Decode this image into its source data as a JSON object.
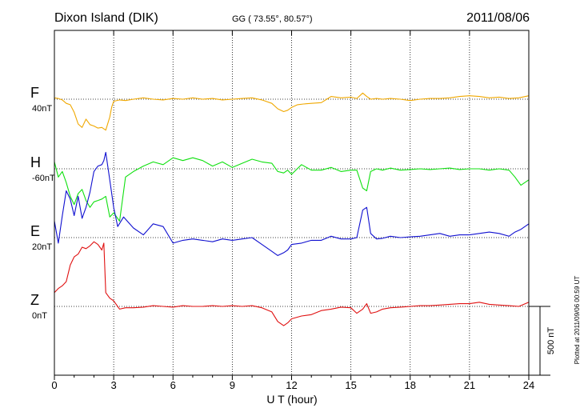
{
  "header": {
    "station": "Dixon Island (DIK)",
    "coords": "GG ( 73.55°,  80.57°)",
    "date": "2011/08/06"
  },
  "side_note": "Plotted at 2011/09/06 00:59 UT",
  "scale_label": "500 nT",
  "chart_data": {
    "type": "line",
    "xlabel": "U T (hour)",
    "xlim": [
      0,
      24
    ],
    "xticks": [
      "0",
      "3",
      "6",
      "9",
      "12",
      "15",
      "18",
      "21",
      "24"
    ],
    "series": [
      {
        "name": "F",
        "baseline_label": "40nT",
        "color": "#f0a800",
        "x": [
          0,
          0.2,
          0.4,
          0.6,
          0.8,
          1.0,
          1.2,
          1.4,
          1.6,
          1.8,
          2.0,
          2.2,
          2.4,
          2.6,
          2.8,
          2.9,
          3.0,
          3.3,
          3.6,
          4.0,
          4.5,
          5.0,
          5.5,
          6.0,
          6.5,
          7.0,
          7.5,
          8.0,
          8.5,
          9.0,
          9.5,
          10.0,
          10.5,
          11.0,
          11.3,
          11.6,
          11.8,
          12.0,
          12.3,
          12.6,
          13.0,
          13.5,
          14.0,
          14.5,
          15.0,
          15.3,
          15.6,
          15.8,
          16.0,
          16.3,
          16.6,
          17.0,
          17.5,
          18.0,
          18.5,
          19.0,
          19.5,
          20.0,
          20.5,
          21.0,
          21.5,
          22.0,
          22.5,
          23.0,
          23.5,
          24.0
        ],
        "y": [
          10,
          5,
          -5,
          -30,
          -40,
          -95,
          -180,
          -205,
          -145,
          -185,
          -195,
          -210,
          -205,
          -225,
          -130,
          -55,
          -15,
          -5,
          -10,
          0,
          10,
          0,
          -5,
          5,
          0,
          10,
          0,
          5,
          -5,
          0,
          5,
          10,
          -5,
          -30,
          -70,
          -90,
          -80,
          -60,
          -40,
          -35,
          -30,
          -25,
          20,
          10,
          15,
          5,
          45,
          20,
          0,
          5,
          0,
          5,
          0,
          -10,
          0,
          5,
          5,
          10,
          20,
          25,
          20,
          10,
          15,
          5,
          10,
          25
        ]
      },
      {
        "name": "H",
        "baseline_label": "-60nT",
        "color": "#10e010",
        "x": [
          0,
          0.2,
          0.4,
          0.6,
          0.8,
          1.0,
          1.2,
          1.4,
          1.6,
          1.8,
          2.0,
          2.2,
          2.4,
          2.6,
          2.8,
          3.0,
          3.3,
          3.6,
          4.0,
          4.5,
          5.0,
          5.5,
          6.0,
          6.5,
          7.0,
          7.5,
          8.0,
          8.5,
          9.0,
          9.5,
          10.0,
          10.5,
          11.0,
          11.3,
          11.6,
          11.8,
          12.0,
          12.5,
          13.0,
          13.5,
          14.0,
          14.5,
          15.0,
          15.3,
          15.6,
          15.8,
          16.0,
          16.3,
          16.6,
          17.0,
          17.5,
          18.0,
          18.5,
          19.0,
          19.5,
          20.0,
          20.5,
          21.0,
          21.5,
          22.0,
          22.5,
          23.0,
          23.3,
          23.6,
          24.0
        ],
        "y": [
          50,
          -60,
          -20,
          -100,
          -200,
          -260,
          -180,
          -150,
          -230,
          -280,
          -240,
          -230,
          -220,
          -200,
          -350,
          -320,
          -380,
          -60,
          -20,
          20,
          50,
          30,
          80,
          60,
          80,
          60,
          20,
          50,
          10,
          40,
          70,
          50,
          40,
          -20,
          -30,
          -10,
          -40,
          30,
          -10,
          -10,
          10,
          -20,
          -10,
          -10,
          -140,
          -160,
          -20,
          0,
          -10,
          5,
          -10,
          -5,
          0,
          -5,
          0,
          5,
          -5,
          0,
          0,
          -10,
          0,
          -10,
          -60,
          -120,
          -80
        ]
      },
      {
        "name": "E",
        "baseline_label": "20nT",
        "color": "#1010d0",
        "x": [
          0,
          0.2,
          0.4,
          0.6,
          0.8,
          1.0,
          1.2,
          1.4,
          1.6,
          1.8,
          2.0,
          2.2,
          2.4,
          2.5,
          2.6,
          2.8,
          3.0,
          3.2,
          3.5,
          4.0,
          4.5,
          5.0,
          5.5,
          6.0,
          6.5,
          7.0,
          7.5,
          8.0,
          8.5,
          9.0,
          9.5,
          10.0,
          10.5,
          11.0,
          11.3,
          11.6,
          11.8,
          12.0,
          12.5,
          13.0,
          13.5,
          14.0,
          14.5,
          15.0,
          15.3,
          15.6,
          15.8,
          16.0,
          16.3,
          16.6,
          17.0,
          17.5,
          18.0,
          18.5,
          19.0,
          19.5,
          20.0,
          20.5,
          21.0,
          21.5,
          22.0,
          22.5,
          23.0,
          23.3,
          23.6,
          24.0
        ],
        "y": [
          120,
          -40,
          160,
          340,
          280,
          160,
          300,
          140,
          220,
          330,
          480,
          520,
          530,
          560,
          620,
          420,
          220,
          80,
          150,
          70,
          20,
          100,
          80,
          -40,
          -20,
          -10,
          -20,
          -30,
          -10,
          -20,
          -10,
          0,
          -50,
          -100,
          -130,
          -110,
          -90,
          -50,
          -40,
          -20,
          -20,
          10,
          -10,
          -10,
          0,
          200,
          220,
          30,
          -10,
          -5,
          10,
          0,
          5,
          10,
          20,
          30,
          10,
          20,
          20,
          30,
          40,
          30,
          10,
          40,
          60,
          100
        ]
      },
      {
        "name": "Z",
        "baseline_label": "0nT",
        "color": "#e01010",
        "x": [
          0,
          0.2,
          0.4,
          0.6,
          0.8,
          1.0,
          1.2,
          1.4,
          1.6,
          1.8,
          2.0,
          2.2,
          2.4,
          2.5,
          2.6,
          2.8,
          3.0,
          3.3,
          3.6,
          4.0,
          4.5,
          5.0,
          5.5,
          6.0,
          6.5,
          7.0,
          7.5,
          8.0,
          8.5,
          9.0,
          9.5,
          10.0,
          10.5,
          11.0,
          11.3,
          11.6,
          11.8,
          12.0,
          12.5,
          13.0,
          13.5,
          14.0,
          14.5,
          15.0,
          15.3,
          15.6,
          15.8,
          16.0,
          16.3,
          16.6,
          17.0,
          17.5,
          18.0,
          18.5,
          19.0,
          19.5,
          20.0,
          20.5,
          21.0,
          21.5,
          22.0,
          22.5,
          23.0,
          23.5,
          24.0
        ],
        "y": [
          100,
          130,
          150,
          180,
          300,
          360,
          380,
          430,
          420,
          440,
          470,
          450,
          410,
          460,
          100,
          60,
          40,
          -20,
          -10,
          -10,
          -5,
          5,
          0,
          -5,
          5,
          0,
          0,
          5,
          0,
          5,
          0,
          5,
          -10,
          -40,
          -110,
          -140,
          -120,
          -90,
          -70,
          -60,
          -30,
          -20,
          -5,
          -10,
          -50,
          -20,
          20,
          -50,
          -40,
          -20,
          -10,
          -5,
          0,
          5,
          5,
          10,
          15,
          20,
          20,
          30,
          15,
          10,
          5,
          0,
          30
        ]
      }
    ]
  }
}
